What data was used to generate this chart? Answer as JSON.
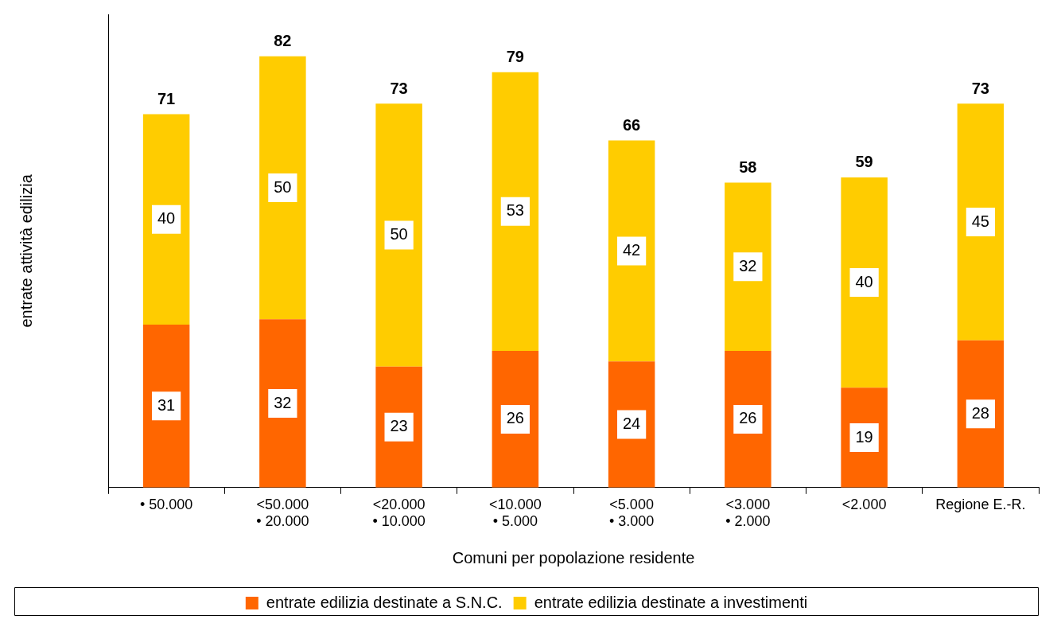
{
  "chart_data": {
    "type": "bar",
    "stacked": true,
    "categories": [
      "• 50.000",
      "<50.000\n• 20.000",
      "<20.000\n• 10.000",
      "<10.000\n• 5.000",
      "<5.000\n• 3.000",
      "<3.000\n• 2.000",
      "<2.000",
      "Regione E.-R."
    ],
    "series": [
      {
        "name": "entrate edilizia destinate a S.N.C.",
        "color": "#ff6600",
        "values": [
          31,
          32,
          23,
          26,
          24,
          26,
          19,
          28
        ]
      },
      {
        "name": "entrate edilizia destinate a investimenti",
        "color": "#ffcc00",
        "values": [
          40,
          50,
          50,
          53,
          42,
          32,
          40,
          45
        ]
      }
    ],
    "totals": [
      "71",
      "82",
      "73",
      "79",
      "66",
      "58",
      "59",
      "73"
    ],
    "data_labels": true,
    "xlabel": "Comuni per popolazione residente",
    "ylabel": "entrate attività edilizia",
    "legend": "bottom",
    "grid": false,
    "tick_labels": "x"
  }
}
